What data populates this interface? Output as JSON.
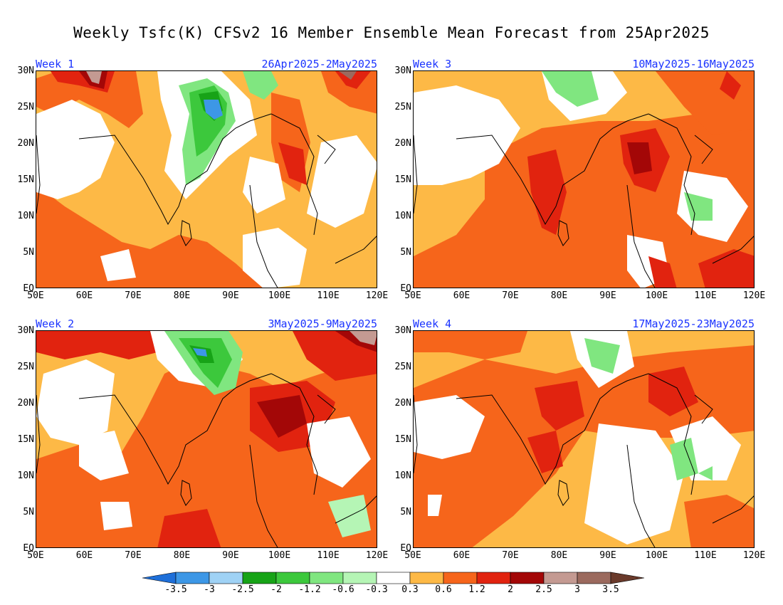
{
  "title": "Weekly Tsfc(K) CFSv2 16 Member Ensemble Mean Forecast from 25Apr2025",
  "panels": [
    {
      "week": "Week 1",
      "dates": "26Apr2025-2May2025"
    },
    {
      "week": "Week 3",
      "dates": "10May2025-16May2025"
    },
    {
      "week": "Week 2",
      "dates": "3May2025-9May2025"
    },
    {
      "week": "Week 4",
      "dates": "17May2025-23May2025"
    }
  ],
  "lat_labels": [
    "30N",
    "25N",
    "20N",
    "15N",
    "10N",
    "5N",
    "EQ"
  ],
  "lon_labels": [
    "50E",
    "60E",
    "70E",
    "80E",
    "90E",
    "100E",
    "110E",
    "120E"
  ],
  "colorbar": {
    "colors": [
      "#1e6fd9",
      "#3d97e6",
      "#9fd2f5",
      "#17a317",
      "#3cc83c",
      "#80e680",
      "#b5f5b5",
      "#ffffff",
      "#fdb946",
      "#f6651b",
      "#e1230f",
      "#a30707",
      "#c49a92",
      "#9b6a5e",
      "#6a3a2b"
    ],
    "labels": [
      "-3.5",
      "-3",
      "-2.5",
      "-2",
      "-1.2",
      "-0.6",
      "-0.3",
      "0.3",
      "0.6",
      "1.2",
      "2",
      "2.5",
      "3",
      "3.5"
    ]
  }
}
